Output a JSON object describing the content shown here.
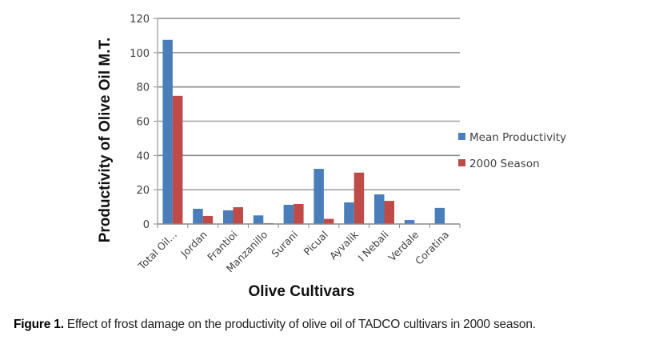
{
  "chart_data": {
    "type": "bar",
    "title": "",
    "xlabel": "Olive Cultivars",
    "ylabel": "Productivity of Olive Oil M.T.",
    "ylim": [
      0,
      120
    ],
    "yticks": [
      0,
      20,
      40,
      60,
      80,
      100,
      120
    ],
    "grid": true,
    "legend_position": "right",
    "categories": [
      "Total Oil...",
      "Jordan",
      "Frantioi",
      "Manzanillo",
      "Surani",
      "Picual",
      "Ayvalik",
      "I Nebali",
      "Verdale",
      "Coratina"
    ],
    "series": [
      {
        "name": "Mean Productivity",
        "color": "#4a7ebb",
        "values": [
          107.5,
          8.9,
          8.0,
          5.0,
          11.2,
          32.2,
          12.6,
          17.3,
          2.3,
          9.4
        ]
      },
      {
        "name": "2000 Season",
        "color": "#be4b48",
        "values": [
          74.8,
          4.7,
          9.8,
          0.5,
          11.7,
          3.0,
          30.0,
          13.5,
          0,
          0
        ]
      }
    ]
  },
  "caption": {
    "label": "Figure 1.",
    "text": " Effect of frost damage on the productivity of olive oil of TADCO cultivars in 2000 season."
  }
}
